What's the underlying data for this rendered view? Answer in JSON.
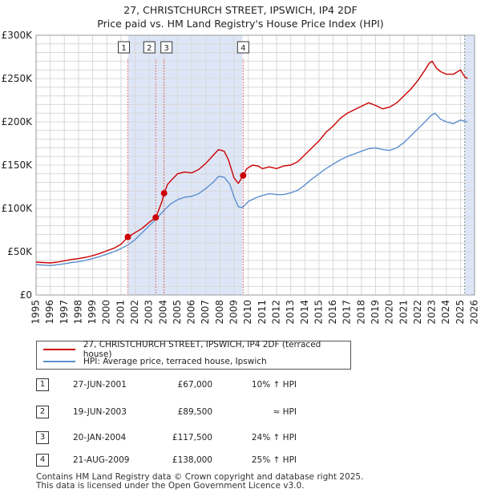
{
  "title": {
    "line1": "27, CHRISTCHURCH STREET, IPSWICH, IP4 2DF",
    "line2": "Price paid vs. HM Land Registry's House Price Index (HPI)"
  },
  "colors": {
    "price_paid": "#cc0000",
    "hpi": "#5b8fd0",
    "shade": "#dde6f7",
    "grid": "#d8d8d8"
  },
  "legend": {
    "price_paid_label": "27, CHRISTCHURCH STREET, IPSWICH, IP4 2DF (terraced house)",
    "hpi_label": "HPI: Average price, terraced house, Ipswich"
  },
  "transactions": [
    {
      "num": "1",
      "date": "27-JUN-2001",
      "price": "£67,000",
      "hpi": "10% ↑ HPI"
    },
    {
      "num": "2",
      "date": "19-JUN-2003",
      "price": "£89,500",
      "hpi": "≈ HPI"
    },
    {
      "num": "3",
      "date": "20-JAN-2004",
      "price": "£117,500",
      "hpi": "24% ↑ HPI"
    },
    {
      "num": "4",
      "date": "21-AUG-2009",
      "price": "£138,000",
      "hpi": "25% ↑ HPI"
    }
  ],
  "footer": {
    "line1": "Contains HM Land Registry data © Crown copyright and database right 2025.",
    "line2": "This data is licensed under the Open Government Licence v3.0."
  },
  "chart_data": {
    "type": "line",
    "title": "27, CHRISTCHURCH STREET, IPSWICH, IP4 2DF — Price paid vs. HM Land Registry's House Price Index (HPI)",
    "xlabel": "",
    "ylabel": "",
    "xlim": [
      1995,
      2026
    ],
    "ylim": [
      0,
      300000
    ],
    "x_ticks": [
      1995,
      1996,
      1997,
      1998,
      1999,
      2000,
      2001,
      2002,
      2003,
      2004,
      2005,
      2006,
      2007,
      2008,
      2009,
      2010,
      2011,
      2012,
      2013,
      2014,
      2015,
      2016,
      2017,
      2018,
      2019,
      2020,
      2021,
      2022,
      2023,
      2024,
      2025,
      2026
    ],
    "y_ticks": [
      0,
      50000,
      100000,
      150000,
      200000,
      250000,
      300000
    ],
    "y_tick_labels": [
      "£0",
      "£50K",
      "£100K",
      "£150K",
      "£200K",
      "£250K",
      "£300K"
    ],
    "shaded_ranges": [
      [
        2001.5,
        2009.6
      ],
      [
        2025.3,
        2026
      ]
    ],
    "series": [
      {
        "name": "27, CHRISTCHURCH STREET, IPSWICH, IP4 2DF (terraced house)",
        "x": [
          1995.0,
          1995.5,
          1996.0,
          1996.5,
          1997.0,
          1997.5,
          1998.0,
          1998.5,
          1999.0,
          1999.5,
          2000.0,
          2000.5,
          2001.0,
          2001.49,
          2001.7,
          2002.0,
          2002.5,
          2003.0,
          2003.46,
          2003.6,
          2003.9,
          2004.05,
          2004.3,
          2004.7,
          2005.0,
          2005.5,
          2006.0,
          2006.5,
          2007.0,
          2007.5,
          2007.9,
          2008.3,
          2008.6,
          2009.0,
          2009.3,
          2009.64,
          2009.9,
          2010.3,
          2010.7,
          2011.0,
          2011.5,
          2012.0,
          2012.5,
          2013.0,
          2013.5,
          2014.0,
          2014.5,
          2015.0,
          2015.5,
          2016.0,
          2016.5,
          2017.0,
          2017.5,
          2018.0,
          2018.5,
          2019.0,
          2019.5,
          2020.0,
          2020.5,
          2021.0,
          2021.5,
          2022.0,
          2022.5,
          2022.8,
          2023.0,
          2023.3,
          2023.6,
          2024.0,
          2024.5,
          2025.0,
          2025.3,
          2025.5
        ],
        "values": [
          38000,
          37500,
          37000,
          38000,
          39500,
          41000,
          42000,
          43500,
          45500,
          48000,
          51000,
          54000,
          58500,
          67000,
          69000,
          72000,
          77000,
          84000,
          89500,
          95000,
          108000,
          117500,
          128000,
          135000,
          140000,
          142000,
          141000,
          145000,
          152000,
          161000,
          168000,
          166000,
          156000,
          135000,
          129000,
          138000,
          146000,
          150000,
          149000,
          146000,
          148000,
          146000,
          149000,
          150000,
          154000,
          162000,
          170000,
          178000,
          188000,
          195000,
          204000,
          210000,
          214000,
          218000,
          222000,
          219000,
          215000,
          217000,
          222000,
          230000,
          238000,
          248000,
          260000,
          268000,
          270000,
          262000,
          258000,
          255000,
          255000,
          260000,
          252000,
          250000
        ]
      },
      {
        "name": "HPI: Average price, terraced house, Ipswich",
        "x": [
          1995.0,
          1995.5,
          1996.0,
          1996.5,
          1997.0,
          1997.5,
          1998.0,
          1998.5,
          1999.0,
          1999.5,
          2000.0,
          2000.5,
          2001.0,
          2001.5,
          2002.0,
          2002.5,
          2003.0,
          2003.5,
          2004.0,
          2004.5,
          2005.0,
          2005.5,
          2006.0,
          2006.5,
          2007.0,
          2007.5,
          2007.9,
          2008.3,
          2008.7,
          2009.0,
          2009.3,
          2009.6,
          2010.0,
          2010.5,
          2011.0,
          2011.5,
          2012.0,
          2012.5,
          2013.0,
          2013.5,
          2014.0,
          2014.5,
          2015.0,
          2015.5,
          2016.0,
          2016.5,
          2017.0,
          2017.5,
          2018.0,
          2018.5,
          2019.0,
          2019.5,
          2020.0,
          2020.5,
          2021.0,
          2021.5,
          2022.0,
          2022.5,
          2022.9,
          2023.2,
          2023.6,
          2024.0,
          2024.5,
          2025.0,
          2025.5
        ],
        "values": [
          35000,
          34500,
          34000,
          35000,
          36000,
          37500,
          38500,
          40000,
          42000,
          44500,
          47000,
          50000,
          53500,
          58000,
          64000,
          72000,
          80000,
          88000,
          97000,
          105000,
          110000,
          113000,
          114000,
          117000,
          123000,
          130000,
          137000,
          136000,
          128000,
          113000,
          102000,
          101000,
          108000,
          112000,
          115000,
          117000,
          116000,
          116000,
          118000,
          121000,
          127000,
          134000,
          140000,
          146000,
          151000,
          156000,
          160000,
          163000,
          166000,
          169000,
          170000,
          168000,
          167000,
          170000,
          176000,
          184000,
          192000,
          200000,
          207000,
          210000,
          203000,
          200000,
          198000,
          202000,
          200000
        ]
      }
    ],
    "markers": [
      {
        "label": "1",
        "x": 2001.49,
        "y": 67000
      },
      {
        "label": "2",
        "x": 2003.46,
        "y": 89500
      },
      {
        "label": "3",
        "x": 2004.05,
        "y": 117500
      },
      {
        "label": "4",
        "x": 2009.64,
        "y": 138000
      }
    ]
  }
}
